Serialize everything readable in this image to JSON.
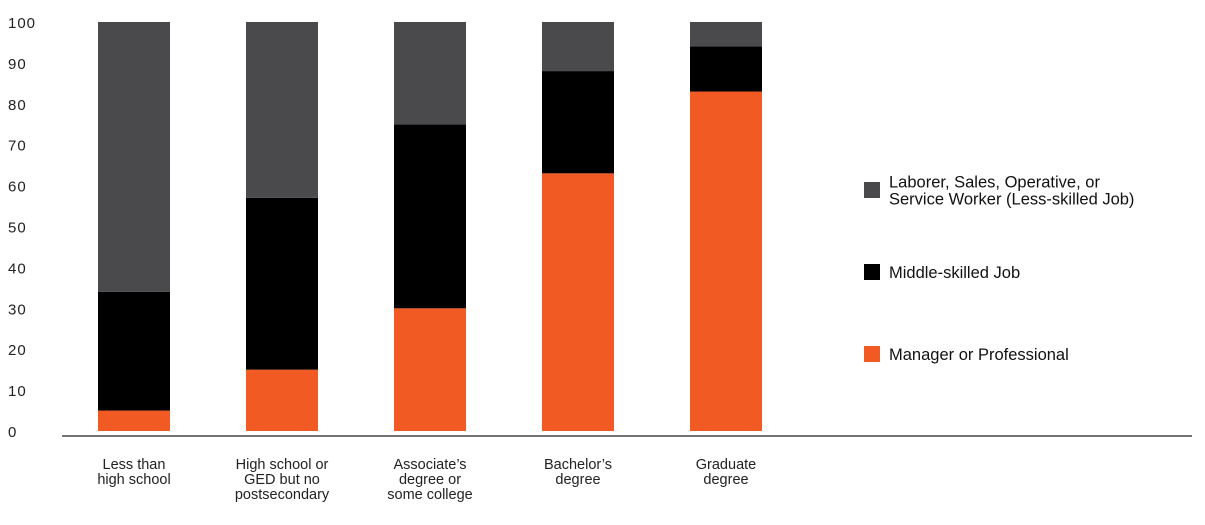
{
  "chart_data": {
    "type": "bar",
    "stacked": true,
    "title": "",
    "xlabel": "",
    "ylabel": "",
    "ylim": [
      0,
      100
    ],
    "yticks": [
      0,
      10,
      20,
      30,
      40,
      50,
      60,
      70,
      80,
      90,
      100
    ],
    "grid": false,
    "legend_position": "right",
    "categories": [
      [
        "Less than",
        "high school"
      ],
      [
        "High school or",
        "GED but no",
        "postsecondary"
      ],
      [
        "Associate’s",
        "degree or",
        "some college"
      ],
      [
        "Bachelor’s",
        "degree"
      ],
      [
        "Graduate",
        "degree"
      ]
    ],
    "series": [
      {
        "name": "Manager or Professional",
        "color": "#f15a22",
        "values": [
          5,
          15,
          30,
          63,
          83
        ]
      },
      {
        "name": "Middle-skilled Job",
        "color": "#000000",
        "values": [
          29,
          42,
          45,
          25,
          11
        ]
      },
      {
        "name": "Laborer, Sales, Operative, or Service Worker (Less-skilled Job)",
        "color": "#4a4a4c",
        "values": [
          66,
          43,
          25,
          12,
          6
        ]
      }
    ],
    "legend": [
      {
        "lines": [
          "Laborer, Sales, Operative, or",
          "Service Worker (Less-skilled Job)"
        ],
        "color": "#4a4a4c"
      },
      {
        "lines": [
          "Middle-skilled Job"
        ],
        "color": "#000000"
      },
      {
        "lines": [
          "Manager or Professional"
        ],
        "color": "#f15a22"
      }
    ]
  }
}
